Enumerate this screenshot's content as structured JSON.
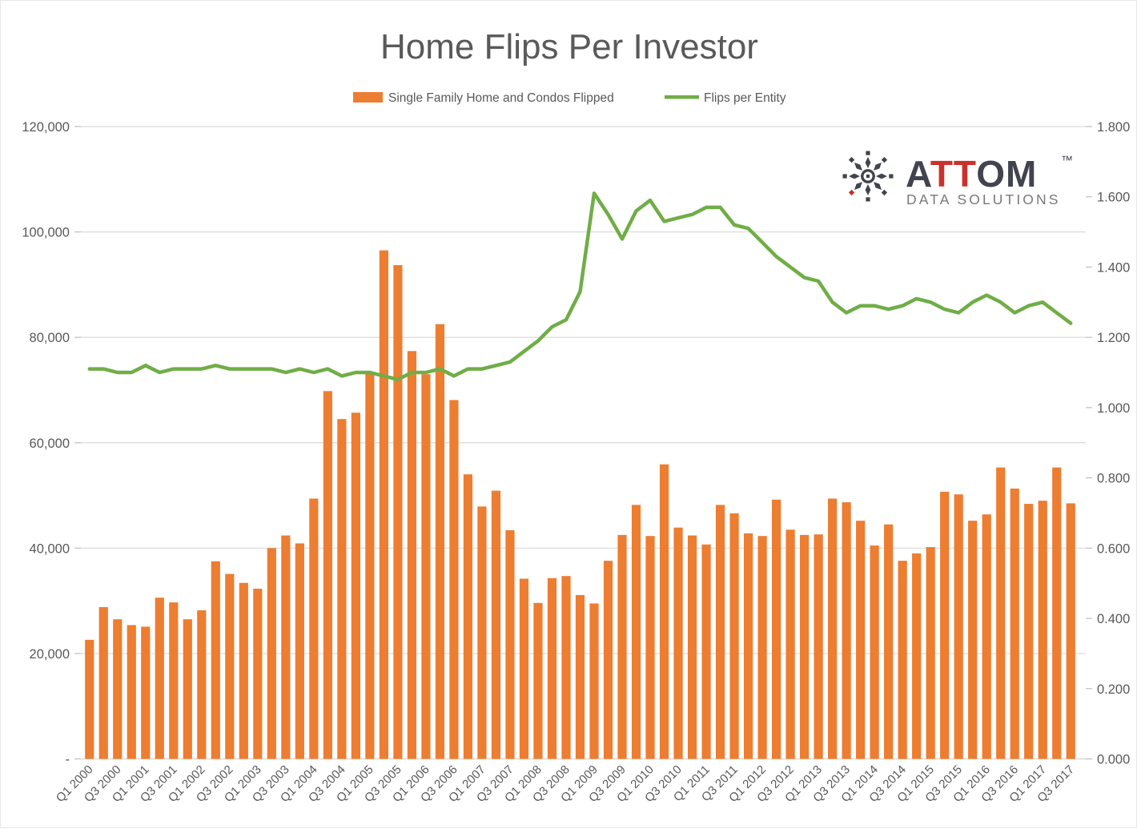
{
  "title": "Home Flips Per Investor",
  "legend": [
    {
      "label": "Single Family Home and Condos Flipped",
      "color": "#ED7D31",
      "type": "bar"
    },
    {
      "label": "Flips per Entity",
      "color": "#70AD47",
      "type": "line"
    }
  ],
  "logo": {
    "part1": "A",
    "part2": "TT",
    "part3": "OM",
    "tm": "™",
    "subtitle": "DATA SOLUTIONS",
    "dark_color": "#41444E",
    "red_color": "#C9322B",
    "subtitle_color": "#77787B"
  },
  "colors": {
    "bar": "#ED7D31",
    "line": "#70AD47",
    "text": "#595959",
    "grid": "#D9D9D9",
    "tick": "#BFBFBF",
    "background": "#FFFFFF"
  },
  "chart_data": {
    "type": "combo",
    "subtypes": [
      "bar",
      "line"
    ],
    "title": "Home Flips Per Investor",
    "categories": [
      "Q1 2000",
      "Q2 2000",
      "Q3 2000",
      "Q4 2000",
      "Q1 2001",
      "Q2 2001",
      "Q3 2001",
      "Q4 2001",
      "Q1 2002",
      "Q2 2002",
      "Q3 2002",
      "Q4 2002",
      "Q1 2003",
      "Q2 2003",
      "Q3 2003",
      "Q4 2003",
      "Q1 2004",
      "Q2 2004",
      "Q3 2004",
      "Q4 2004",
      "Q1 2005",
      "Q2 2005",
      "Q3 2005",
      "Q4 2005",
      "Q1 2006",
      "Q2 2006",
      "Q3 2006",
      "Q4 2006",
      "Q1 2007",
      "Q2 2007",
      "Q3 2007",
      "Q4 2007",
      "Q1 2008",
      "Q2 2008",
      "Q3 2008",
      "Q4 2008",
      "Q1 2009",
      "Q2 2009",
      "Q3 2009",
      "Q4 2009",
      "Q1 2010",
      "Q2 2010",
      "Q3 2010",
      "Q4 2010",
      "Q1 2011",
      "Q2 2011",
      "Q3 2011",
      "Q4 2011",
      "Q1 2012",
      "Q2 2012",
      "Q3 2012",
      "Q4 2012",
      "Q1 2013",
      "Q2 2013",
      "Q3 2013",
      "Q4 2013",
      "Q1 2014",
      "Q2 2014",
      "Q3 2014",
      "Q4 2014",
      "Q1 2015",
      "Q2 2015",
      "Q3 2015",
      "Q4 2015",
      "Q1 2016",
      "Q2 2016",
      "Q3 2016",
      "Q4 2016",
      "Q1 2017",
      "Q2 2017",
      "Q3 2017"
    ],
    "x_tick_every": 2,
    "series": [
      {
        "name": "Single Family Home and Condos Flipped",
        "type": "bar",
        "axis": "left",
        "color": "#ED7D31",
        "values": [
          22600,
          28800,
          26500,
          25400,
          25100,
          30600,
          29700,
          26500,
          28200,
          37500,
          35100,
          33400,
          32300,
          40000,
          42400,
          40900,
          49400,
          69800,
          64500,
          65700,
          73100,
          96500,
          93700,
          77400,
          73000,
          82500,
          68100,
          54000,
          47900,
          50900,
          43400,
          34200,
          29600,
          34300,
          34700,
          31100,
          29500,
          37600,
          42500,
          48200,
          42300,
          55900,
          43900,
          42400,
          40700,
          48200,
          46600,
          42800,
          42300,
          49200,
          43500,
          42500,
          42600,
          49400,
          48700,
          45200,
          40500,
          44500,
          37600,
          39000,
          40200,
          50700,
          50200,
          45200,
          46400,
          55300,
          51300,
          48400,
          49000,
          55300,
          48500
        ]
      },
      {
        "name": "Flips per Entity",
        "type": "line",
        "axis": "right",
        "color": "#70AD47",
        "values": [
          1.11,
          1.11,
          1.1,
          1.1,
          1.12,
          1.1,
          1.11,
          1.11,
          1.11,
          1.12,
          1.11,
          1.11,
          1.11,
          1.11,
          1.1,
          1.11,
          1.1,
          1.11,
          1.09,
          1.1,
          1.1,
          1.09,
          1.08,
          1.1,
          1.1,
          1.11,
          1.09,
          1.11,
          1.11,
          1.12,
          1.13,
          1.16,
          1.19,
          1.23,
          1.25,
          1.33,
          1.61,
          1.55,
          1.48,
          1.56,
          1.59,
          1.53,
          1.54,
          1.55,
          1.57,
          1.57,
          1.52,
          1.51,
          1.47,
          1.43,
          1.4,
          1.37,
          1.36,
          1.3,
          1.27,
          1.29,
          1.29,
          1.28,
          1.29,
          1.31,
          1.3,
          1.28,
          1.27,
          1.3,
          1.32,
          1.3,
          1.27,
          1.29,
          1.3,
          1.27,
          1.24
        ]
      }
    ],
    "y_left": {
      "min": 0,
      "max": 120000,
      "step": 20000,
      "tick_labels": [
        "-",
        "20,000",
        "40,000",
        "60,000",
        "80,000",
        "100,000",
        "120,000"
      ]
    },
    "y_right": {
      "min": 0,
      "max": 1.8,
      "step": 0.2,
      "tick_labels": [
        "0.000",
        "0.200",
        "0.400",
        "0.600",
        "0.800",
        "1.000",
        "1.200",
        "1.400",
        "1.600",
        "1.800"
      ]
    },
    "grid": "horizontal",
    "legend_position": "top"
  }
}
